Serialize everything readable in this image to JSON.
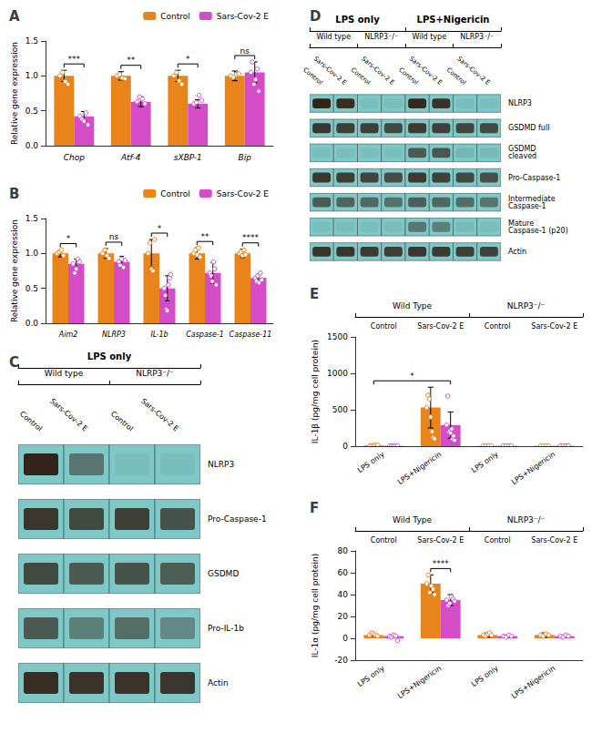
{
  "chart_data": [
    {
      "type": "bar",
      "title": "A",
      "categories": [
        "Chop",
        "Atf-4",
        "sXBP-1",
        "Bip"
      ],
      "series": [
        {
          "name": "Control",
          "color": "#E8841A",
          "values": [
            1.0,
            1.0,
            1.0,
            1.0
          ],
          "errors": [
            0.08,
            0.06,
            0.08,
            0.07
          ],
          "points": [
            [
              1.0,
              1.05,
              0.92,
              0.88
            ],
            [
              1.0,
              1.02,
              0.97,
              0.96
            ],
            [
              1.0,
              1.05,
              0.93,
              0.88
            ],
            [
              1.0,
              0.98,
              1.02,
              1.03
            ]
          ]
        },
        {
          "name": "Sars-Cov-2 E",
          "color": "#D44CC8",
          "values": [
            0.42,
            0.63,
            0.6,
            1.05
          ],
          "errors": [
            0.07,
            0.07,
            0.06,
            0.15
          ],
          "points": [
            [
              0.42,
              0.38,
              0.35,
              0.47,
              0.3
            ],
            [
              0.63,
              0.7,
              0.67,
              0.6
            ],
            [
              0.6,
              0.62,
              0.72,
              0.65
            ],
            [
              1.05,
              1.2,
              0.88,
              0.95,
              1.1,
              0.78
            ]
          ]
        }
      ],
      "significance": [
        "***",
        "**",
        "*",
        "ns"
      ],
      "ylabel": "Relative gene expression",
      "ylim": [
        0,
        1.5
      ],
      "yticks": [
        {
          "value": 0,
          "label": "0.0"
        },
        0.5,
        {
          "value": 1,
          "label": "1.0"
        },
        1.5
      ],
      "legend": "upper right"
    },
    {
      "type": "bar",
      "title": "B",
      "categories": [
        "Aim2",
        "NLRP3",
        "IL-1b",
        "Caspase-1",
        "Caspase-11"
      ],
      "series": [
        {
          "name": "Control",
          "color": "#E8841A",
          "values": [
            1.0,
            1.0,
            1.0,
            1.0,
            1.0
          ],
          "errors": [
            0.05,
            0.07,
            0.2,
            0.08,
            0.06
          ],
          "points": [
            [
              1.0,
              1.02,
              1.05,
              0.97
            ],
            [
              1.0,
              1.05,
              0.97,
              0.93
            ],
            [
              1.0,
              1.15,
              0.78,
              0.75,
              1.2
            ],
            [
              1.0,
              1.05,
              0.98,
              1.08,
              0.95
            ],
            [
              1.0,
              1.02,
              0.97,
              1.05,
              0.98
            ]
          ]
        },
        {
          "name": "Sars-Cov-2 E",
          "color": "#D44CC8",
          "values": [
            0.85,
            0.88,
            0.5,
            0.72,
            0.65
          ],
          "errors": [
            0.07,
            0.08,
            0.18,
            0.15,
            0.05
          ],
          "points": [
            [
              0.85,
              0.72,
              0.78,
              0.92,
              0.88
            ],
            [
              0.88,
              0.83,
              0.92,
              0.8,
              0.9
            ],
            [
              0.5,
              0.4,
              0.2,
              0.18,
              0.55,
              0.65,
              0.7
            ],
            [
              0.72,
              0.68,
              0.6,
              0.88,
              0.78,
              0.55
            ],
            [
              0.65,
              0.6,
              0.68,
              0.58,
              0.72,
              0.62
            ]
          ]
        }
      ],
      "significance": [
        "*",
        "ns",
        "*",
        "**",
        "****"
      ],
      "ylabel": "Relative gene expression",
      "ylim": [
        0,
        1.5
      ],
      "yticks": [
        {
          "value": 0,
          "label": "0.0"
        },
        0.5,
        {
          "value": 1,
          "label": "1.0"
        },
        1.5
      ],
      "legend": "upper right"
    },
    {
      "type": "heatmap",
      "title": "C",
      "categories": [
        "Control",
        "Sars-Cov-2 E",
        "Control",
        "Sars-Cov-2 E"
      ],
      "row_labels": [
        "NLRP3",
        "Pro-Caspase-1",
        "GSDMD",
        "Pro-IL-1b",
        "Actin"
      ],
      "cells": [
        [
          0.9,
          0.45,
          0.05,
          0.05
        ],
        [
          0.8,
          0.7,
          0.75,
          0.65
        ],
        [
          0.7,
          0.6,
          0.65,
          0.58
        ],
        [
          0.6,
          0.4,
          0.5,
          0.35
        ],
        [
          0.85,
          0.82,
          0.82,
          0.8
        ]
      ],
      "color": "#7EC8C8",
      "group_labels": [
        "Wild type",
        "NLRP3⁻/⁻"
      ],
      "header_labels": [
        "LPS only"
      ]
    },
    {
      "type": "heatmap",
      "title": "D",
      "categories": [
        "Control",
        "Sars-Cov-2 E",
        "Control",
        "Sars-Cov-2 E",
        "Control",
        "Sars-Cov-2 E",
        "Control",
        "Sars-Cov-2 E"
      ],
      "row_labels": [
        "NLRP3",
        "GSDMD full",
        "GSDMD\ncleaved",
        "Pro-Caspase-1",
        "Intermediate\nCaspase-1",
        "Mature\nCaspase-1 (p20)",
        "Actin"
      ],
      "cells": [
        [
          0.9,
          0.85,
          0.05,
          0.05,
          0.88,
          0.82,
          0.05,
          0.05
        ],
        [
          0.8,
          0.75,
          0.75,
          0.7,
          0.78,
          0.74,
          0.72,
          0.7
        ],
        [
          0.05,
          0.05,
          0.05,
          0.05,
          0.6,
          0.62,
          0.1,
          0.08
        ],
        [
          0.8,
          0.75,
          0.72,
          0.68,
          0.78,
          0.74,
          0.7,
          0.66
        ],
        [
          0.6,
          0.55,
          0.52,
          0.48,
          0.58,
          0.54,
          0.5,
          0.46
        ],
        [
          0.05,
          0.05,
          0.05,
          0.05,
          0.45,
          0.4,
          0.08,
          0.05
        ],
        [
          0.82,
          0.8,
          0.78,
          0.76,
          0.8,
          0.78,
          0.76,
          0.74
        ]
      ],
      "color": "#7EC8C8",
      "group_labels": [
        "Wild type",
        "NLRP3⁻/⁻",
        "Wild type",
        "NLRP3⁻/⁻"
      ],
      "header_labels": [
        "LPS only",
        "LPS+Nigericin"
      ]
    },
    {
      "type": "bar",
      "title": "E",
      "categories": [
        "LPS only",
        "LPS+Nigericin",
        "LPS only",
        "LPS+Nigericin"
      ],
      "series": [
        {
          "color": "#E8841A",
          "values": [
            10,
            530,
            5,
            5
          ],
          "errors": [
            5,
            280,
            3,
            3
          ],
          "points": [
            [
              5,
              8,
              10,
              15,
              12
            ],
            [
              530,
              700,
              650,
              400,
              200,
              120,
              100
            ],
            [
              5,
              4,
              6,
              3
            ],
            [
              5,
              4,
              6,
              3
            ]
          ]
        },
        {
          "color": "#D44CC8",
          "values": [
            5,
            290,
            5,
            5
          ],
          "errors": [
            3,
            180,
            3,
            3
          ],
          "points": [
            [
              3,
              2,
              5,
              4,
              6
            ],
            [
              290,
              700,
              200,
              220,
              180,
              250,
              100,
              150,
              80
            ],
            [
              5,
              4,
              3,
              6
            ],
            [
              5,
              4,
              3,
              6
            ]
          ]
        }
      ],
      "significance": "*",
      "subgroup_labels": [
        "Control",
        "Sars-Cov-2 E",
        "Control",
        "Sars-Cov-2 E"
      ],
      "group_labels": [
        "Wild Type",
        "NLRP3⁻/⁻"
      ],
      "ylabel": "IL-1β (pg/mg cell protein)",
      "ylim": [
        0,
        1500
      ],
      "yticks": [
        0,
        500,
        1000,
        1500
      ]
    },
    {
      "type": "bar",
      "title": "F",
      "categories": [
        "LPS only",
        "LPS+Nigericin",
        "LPS only",
        "LPS+Nigericin"
      ],
      "series": [
        {
          "color": "#E8841A",
          "values": [
            3,
            50,
            3,
            3
          ],
          "errors": [
            1,
            8,
            2,
            2
          ],
          "points": [
            [
              3,
              5,
              4,
              3,
              2
            ],
            [
              50,
              58,
              42,
              48,
              45,
              40
            ],
            [
              3,
              2,
              4,
              5,
              3
            ],
            [
              3,
              2,
              4,
              3
            ]
          ]
        },
        {
          "color": "#D44CC8",
          "values": [
            2,
            35,
            2,
            2
          ],
          "errors": [
            1,
            5,
            1,
            1
          ],
          "points": [
            [
              2,
              1,
              3,
              2,
              -2
            ],
            [
              35,
              30,
              32,
              38,
              36,
              34
            ],
            [
              2,
              1,
              3,
              2
            ],
            [
              2,
              1,
              3,
              2
            ]
          ]
        }
      ],
      "significance": "****",
      "subgroup_labels": [
        "Control",
        "Sars-Cov-2 E",
        "Control",
        "Sars-Cov-2 E"
      ],
      "group_labels": [
        "Wild Type",
        "NLRP3⁻/⁻"
      ],
      "ylabel": "IL-1α (pg/mg cell protein)",
      "ylim": [
        -20,
        80
      ],
      "yticks": [
        -20,
        0,
        20,
        40,
        60,
        80
      ]
    }
  ]
}
